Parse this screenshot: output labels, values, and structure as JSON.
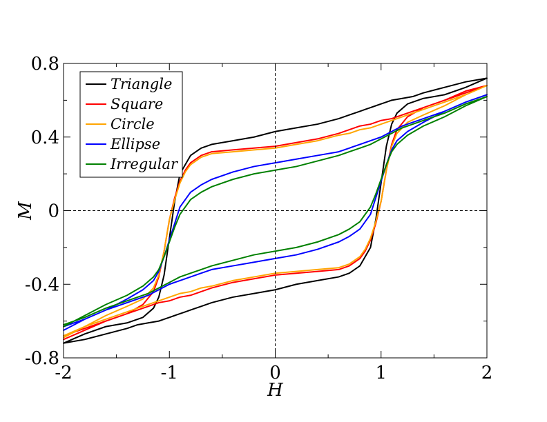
{
  "chart_data": {
    "type": "line",
    "title": "",
    "xlabel": "H",
    "ylabel": "M",
    "xlim": [
      -2,
      2
    ],
    "ylim": [
      -0.8,
      0.8
    ],
    "xticks": [
      -2,
      -1,
      0,
      1,
      2
    ],
    "xtick_labels": [
      "-2",
      "-1",
      "0",
      "1",
      "2"
    ],
    "yticks": [
      -0.8,
      -0.4,
      0,
      0.4,
      0.8
    ],
    "ytick_labels": [
      "-0.8",
      "-0.4",
      "0",
      "0.4",
      "0.8"
    ],
    "grid": false,
    "zero_lines": "dashed",
    "legend_position": "top-left",
    "series": [
      {
        "name": "Triangle",
        "color": "#000000",
        "x": [
          -2.0,
          -1.8,
          -1.6,
          -1.4,
          -1.25,
          -1.15,
          -1.1,
          -1.05,
          -1.0,
          -0.95,
          -0.9,
          -0.8,
          -0.7,
          -0.6,
          -0.4,
          -0.2,
          0.0,
          0.2,
          0.4,
          0.6,
          0.7,
          0.8,
          0.85,
          0.9,
          0.95,
          1.0,
          1.05,
          1.1,
          1.2,
          1.3,
          1.4,
          1.6,
          1.8,
          2.0,
          1.8,
          1.6,
          1.4,
          1.25,
          1.15,
          1.1,
          1.05,
          1.0,
          0.95,
          0.9,
          0.8,
          0.7,
          0.6,
          0.4,
          0.2,
          0.0,
          -0.2,
          -0.4,
          -0.6,
          -0.7,
          -0.8,
          -0.85,
          -0.9,
          -0.95,
          -1.0,
          -1.05,
          -1.1,
          -1.2,
          -1.3,
          -1.4,
          -1.6,
          -1.8,
          -2.0
        ],
        "y": [
          -0.72,
          -0.67,
          -0.63,
          -0.61,
          -0.58,
          -0.53,
          -0.47,
          -0.35,
          -0.15,
          0.05,
          0.2,
          0.3,
          0.34,
          0.36,
          0.38,
          0.4,
          0.43,
          0.45,
          0.47,
          0.5,
          0.52,
          0.54,
          0.55,
          0.56,
          0.57,
          0.58,
          0.59,
          0.6,
          0.61,
          0.62,
          0.64,
          0.67,
          0.7,
          0.72,
          0.67,
          0.63,
          0.61,
          0.58,
          0.53,
          0.47,
          0.35,
          0.15,
          -0.05,
          -0.2,
          -0.3,
          -0.34,
          -0.36,
          -0.38,
          -0.4,
          -0.43,
          -0.45,
          -0.47,
          -0.5,
          -0.52,
          -0.54,
          -0.55,
          -0.56,
          -0.57,
          -0.58,
          -0.59,
          -0.6,
          -0.61,
          -0.62,
          -0.64,
          -0.67,
          -0.7,
          -0.72
        ]
      },
      {
        "name": "Square",
        "color": "#ff0000",
        "x": [
          -2.0,
          -1.8,
          -1.6,
          -1.4,
          -1.25,
          -1.15,
          -1.1,
          -1.05,
          -1.0,
          -0.95,
          -0.9,
          -0.85,
          -0.8,
          -0.7,
          -0.6,
          -0.4,
          -0.2,
          0.0,
          0.2,
          0.4,
          0.6,
          0.7,
          0.8,
          0.9,
          1.0,
          1.1,
          1.2,
          1.4,
          1.6,
          1.8,
          2.0,
          1.8,
          1.6,
          1.4,
          1.25,
          1.15,
          1.1,
          1.05,
          1.0,
          0.95,
          0.9,
          0.85,
          0.8,
          0.7,
          0.6,
          0.4,
          0.2,
          0.0,
          -0.2,
          -0.4,
          -0.6,
          -0.7,
          -0.8,
          -0.9,
          -1.0,
          -1.1,
          -1.2,
          -1.4,
          -1.6,
          -1.8,
          -2.0
        ],
        "y": [
          -0.7,
          -0.65,
          -0.6,
          -0.56,
          -0.51,
          -0.44,
          -0.36,
          -0.22,
          -0.05,
          0.07,
          0.16,
          0.22,
          0.26,
          0.3,
          0.32,
          0.33,
          0.34,
          0.35,
          0.37,
          0.39,
          0.42,
          0.44,
          0.46,
          0.47,
          0.49,
          0.5,
          0.52,
          0.56,
          0.6,
          0.64,
          0.68,
          0.65,
          0.6,
          0.56,
          0.51,
          0.44,
          0.36,
          0.22,
          0.05,
          -0.07,
          -0.16,
          -0.22,
          -0.26,
          -0.3,
          -0.32,
          -0.33,
          -0.34,
          -0.35,
          -0.37,
          -0.39,
          -0.42,
          -0.44,
          -0.46,
          -0.47,
          -0.49,
          -0.5,
          -0.52,
          -0.56,
          -0.6,
          -0.64,
          -0.68
        ]
      },
      {
        "name": "Circle",
        "color": "#ffa500",
        "x": [
          -2.0,
          -1.8,
          -1.6,
          -1.4,
          -1.25,
          -1.15,
          -1.1,
          -1.05,
          -1.0,
          -0.95,
          -0.9,
          -0.85,
          -0.8,
          -0.7,
          -0.6,
          -0.4,
          -0.2,
          0.0,
          0.2,
          0.4,
          0.6,
          0.7,
          0.8,
          0.9,
          1.0,
          1.1,
          1.2,
          1.4,
          1.6,
          1.8,
          2.0,
          1.8,
          1.6,
          1.4,
          1.25,
          1.15,
          1.1,
          1.05,
          1.0,
          0.95,
          0.9,
          0.85,
          0.8,
          0.7,
          0.6,
          0.4,
          0.2,
          0.0,
          -0.2,
          -0.4,
          -0.6,
          -0.7,
          -0.8,
          -0.9,
          -1.0,
          -1.1,
          -1.2,
          -1.4,
          -1.6,
          -1.8,
          -2.0
        ],
        "y": [
          -0.69,
          -0.63,
          -0.57,
          -0.52,
          -0.48,
          -0.42,
          -0.35,
          -0.22,
          -0.05,
          0.06,
          0.15,
          0.21,
          0.25,
          0.29,
          0.31,
          0.32,
          0.33,
          0.34,
          0.36,
          0.38,
          0.41,
          0.42,
          0.44,
          0.45,
          0.47,
          0.49,
          0.51,
          0.55,
          0.59,
          0.63,
          0.68,
          0.63,
          0.57,
          0.52,
          0.48,
          0.42,
          0.35,
          0.22,
          0.05,
          -0.06,
          -0.15,
          -0.21,
          -0.25,
          -0.29,
          -0.31,
          -0.32,
          -0.33,
          -0.34,
          -0.36,
          -0.38,
          -0.41,
          -0.42,
          -0.44,
          -0.45,
          -0.47,
          -0.49,
          -0.51,
          -0.55,
          -0.59,
          -0.63,
          -0.68
        ]
      },
      {
        "name": "Ellipse",
        "color": "#0000ff",
        "x": [
          -2.0,
          -1.8,
          -1.6,
          -1.4,
          -1.25,
          -1.15,
          -1.1,
          -1.05,
          -1.0,
          -0.95,
          -0.9,
          -0.8,
          -0.7,
          -0.6,
          -0.4,
          -0.2,
          0.0,
          0.2,
          0.4,
          0.6,
          0.7,
          0.8,
          0.9,
          1.0,
          1.1,
          1.2,
          1.4,
          1.6,
          1.8,
          2.0,
          1.8,
          1.6,
          1.4,
          1.25,
          1.15,
          1.1,
          1.05,
          1.0,
          0.95,
          0.9,
          0.8,
          0.7,
          0.6,
          0.4,
          0.2,
          0.0,
          -0.2,
          -0.4,
          -0.6,
          -0.7,
          -0.8,
          -0.9,
          -1.0,
          -1.1,
          -1.2,
          -1.4,
          -1.6,
          -1.8,
          -2.0
        ],
        "y": [
          -0.65,
          -0.59,
          -0.54,
          -0.48,
          -0.43,
          -0.38,
          -0.33,
          -0.25,
          -0.16,
          -0.07,
          0.02,
          0.1,
          0.14,
          0.17,
          0.21,
          0.24,
          0.26,
          0.28,
          0.3,
          0.32,
          0.34,
          0.36,
          0.38,
          0.4,
          0.43,
          0.46,
          0.5,
          0.54,
          0.59,
          0.63,
          0.59,
          0.54,
          0.48,
          0.43,
          0.38,
          0.33,
          0.25,
          0.16,
          0.07,
          -0.02,
          -0.1,
          -0.14,
          -0.17,
          -0.21,
          -0.24,
          -0.26,
          -0.28,
          -0.3,
          -0.32,
          -0.34,
          -0.36,
          -0.38,
          -0.4,
          -0.43,
          -0.46,
          -0.5,
          -0.54,
          -0.59,
          -0.63
        ]
      },
      {
        "name": "Irregular",
        "color": "#008000",
        "x": [
          -2.0,
          -1.8,
          -1.6,
          -1.4,
          -1.25,
          -1.15,
          -1.1,
          -1.05,
          -1.0,
          -0.95,
          -0.9,
          -0.8,
          -0.7,
          -0.6,
          -0.4,
          -0.2,
          0.0,
          0.2,
          0.4,
          0.6,
          0.7,
          0.8,
          0.9,
          1.0,
          1.1,
          1.2,
          1.4,
          1.6,
          1.8,
          2.0,
          1.8,
          1.6,
          1.4,
          1.25,
          1.15,
          1.1,
          1.05,
          1.0,
          0.95,
          0.9,
          0.8,
          0.7,
          0.6,
          0.4,
          0.2,
          0.0,
          -0.2,
          -0.4,
          -0.6,
          -0.7,
          -0.8,
          -0.9,
          -1.0,
          -1.1,
          -1.2,
          -1.4,
          -1.6,
          -1.8,
          -2.0
        ],
        "y": [
          -0.63,
          -0.57,
          -0.51,
          -0.46,
          -0.41,
          -0.36,
          -0.32,
          -0.25,
          -0.17,
          -0.09,
          -0.02,
          0.06,
          0.1,
          0.13,
          0.17,
          0.2,
          0.22,
          0.24,
          0.27,
          0.3,
          0.32,
          0.34,
          0.36,
          0.39,
          0.42,
          0.45,
          0.49,
          0.53,
          0.58,
          0.62,
          0.57,
          0.51,
          0.46,
          0.41,
          0.36,
          0.32,
          0.25,
          0.17,
          0.09,
          0.02,
          -0.06,
          -0.1,
          -0.13,
          -0.17,
          -0.2,
          -0.22,
          -0.24,
          -0.27,
          -0.3,
          -0.32,
          -0.34,
          -0.36,
          -0.39,
          -0.42,
          -0.45,
          -0.49,
          -0.53,
          -0.58,
          -0.62
        ]
      }
    ]
  }
}
